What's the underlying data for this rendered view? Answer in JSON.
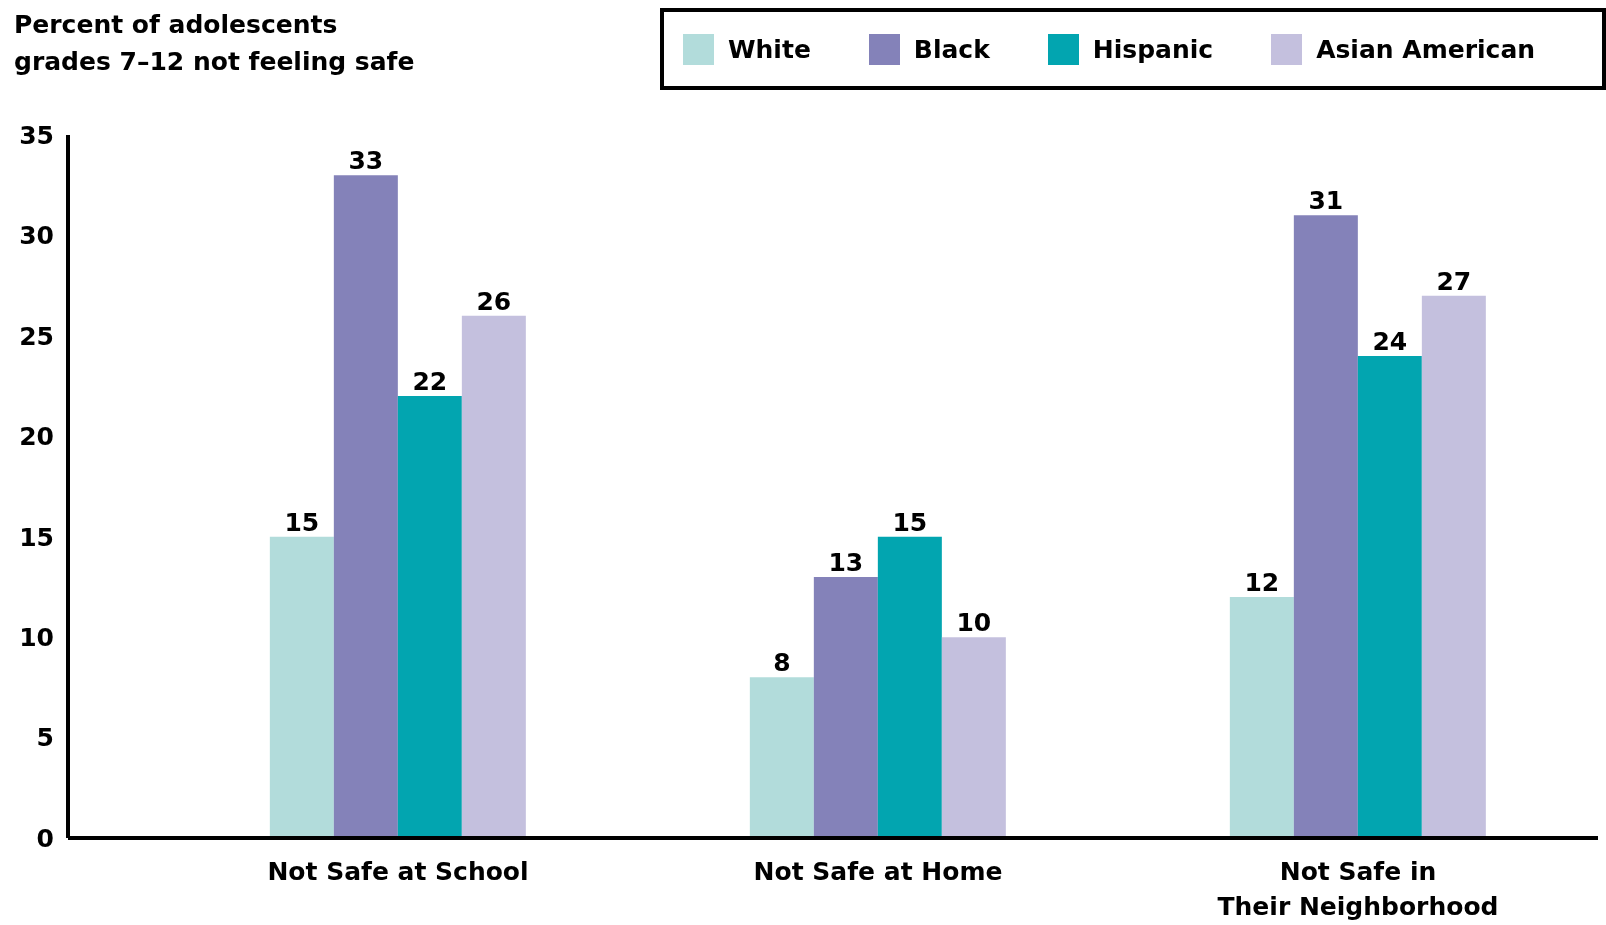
{
  "chart_data": {
    "type": "bar",
    "ylabel": "Percent of adolescents\ngrades 7–12 not feeling safe",
    "categories": [
      "Not Safe at School",
      "Not Safe at Home",
      "Not Safe in\nTheir Neighborhood"
    ],
    "series": [
      {
        "name": "White",
        "color": "#b2dcdb",
        "values": [
          15,
          8,
          12
        ]
      },
      {
        "name": "Black",
        "color": "#8482b9",
        "values": [
          33,
          13,
          31
        ]
      },
      {
        "name": "Hispanic",
        "color": "#02a5b0",
        "values": [
          22,
          15,
          24
        ]
      },
      {
        "name": "Asian American",
        "color": "#c4c0de",
        "values": [
          26,
          10,
          27
        ]
      }
    ],
    "ylim": [
      0,
      35
    ],
    "yticks": [
      0,
      5,
      10,
      15,
      20,
      25,
      30,
      35
    ],
    "data_labels": true,
    "legend": "top right"
  }
}
